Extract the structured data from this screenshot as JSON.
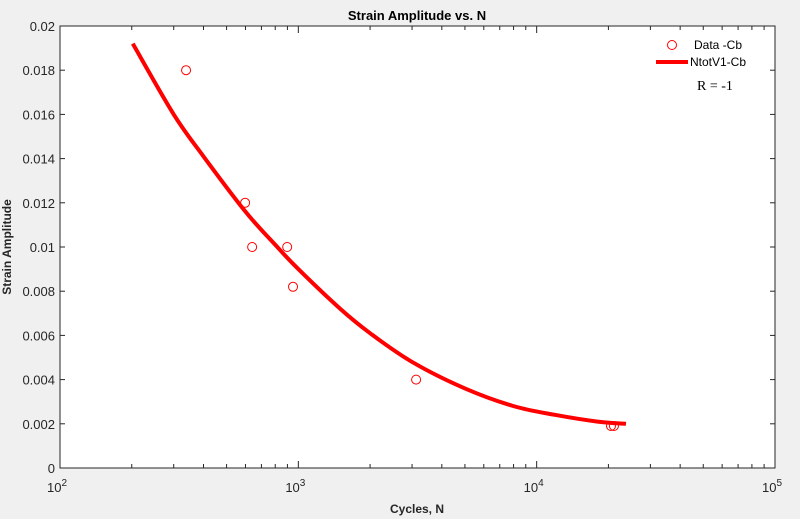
{
  "chart_data": {
    "type": "scatter",
    "title": "Strain Amplitude vs. N",
    "xlabel": "Cycles, N",
    "ylabel": "Strain Amplitude",
    "xscale": "log",
    "xlim": [
      100,
      100000
    ],
    "ylim": [
      0,
      0.02
    ],
    "x_ticks": [
      100,
      1000,
      10000,
      100000
    ],
    "x_tick_labels": [
      {
        "base": "10",
        "exp": "2"
      },
      {
        "base": "10",
        "exp": "3"
      },
      {
        "base": "10",
        "exp": "4"
      },
      {
        "base": "10",
        "exp": "5"
      }
    ],
    "y_ticks": [
      0,
      0.002,
      0.004,
      0.006,
      0.008,
      0.01,
      0.012,
      0.014,
      0.016,
      0.018,
      0.02
    ],
    "y_tick_labels": [
      "0",
      "0.002",
      "0.004",
      "0.006",
      "0.008",
      "0.01",
      "0.012",
      "0.014",
      "0.016",
      "0.018",
      "0.02"
    ],
    "grid": false,
    "legend_position": "northeast",
    "series": [
      {
        "name": "Data -Cb",
        "type": "scatter",
        "marker": "open-circle",
        "color": "#ff0000",
        "x": [
          338,
          598,
          640,
          898,
          950,
          3120,
          20500,
          21100
        ],
        "y": [
          0.018,
          0.012,
          0.01,
          0.01,
          0.0082,
          0.004,
          0.0019,
          0.0019
        ]
      },
      {
        "name": "NtotV1-Cb",
        "type": "line",
        "color": "#ff0000",
        "line_width": 4,
        "x": [
          202,
          300,
          400,
          600,
          800,
          1000,
          1500,
          2000,
          3000,
          5000,
          8000,
          12000,
          18000,
          23700
        ],
        "y": [
          0.0192,
          0.016,
          0.0141,
          0.0116,
          0.0101,
          0.009,
          0.0072,
          0.0061,
          0.0048,
          0.0036,
          0.0028,
          0.0024,
          0.0021,
          0.002
        ]
      }
    ],
    "annotations": [
      {
        "text": "R = -1",
        "position": "below-legend"
      }
    ]
  }
}
